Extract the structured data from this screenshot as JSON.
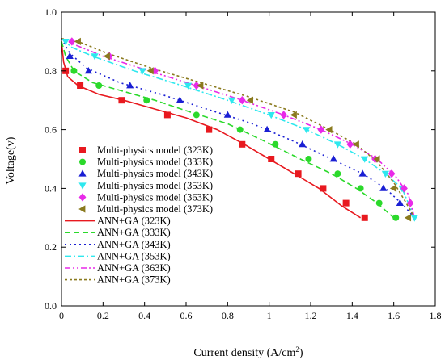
{
  "chart_data": {
    "type": "scatter",
    "xlabel": "Current density (A/cm",
    "xlabel_sup": "2",
    "xlabel_close": ")",
    "ylabel": "Voltage(v)",
    "xlim": [
      0,
      1.8
    ],
    "ylim": [
      0,
      1.0
    ],
    "xticks": [
      "0",
      "0.2",
      "0.4",
      "0.6",
      "0.8",
      "1",
      "1.2",
      "1.4",
      "1.6",
      "1.8"
    ],
    "yticks": [
      "0.0",
      "0.2",
      "0.4",
      "0.6",
      "0.8",
      "1.0"
    ],
    "grid": false,
    "legend_position": "left",
    "series": [
      {
        "name": "Multi-physics model (323K)",
        "kind": "markers",
        "marker": "square",
        "color": "#e8191f",
        "x": [
          0.02,
          0.09,
          0.29,
          0.51,
          0.71,
          0.87,
          1.01,
          1.14,
          1.26,
          1.37,
          1.46
        ],
        "y": [
          0.8,
          0.75,
          0.7,
          0.65,
          0.6,
          0.55,
          0.5,
          0.45,
          0.4,
          0.35,
          0.3
        ]
      },
      {
        "name": "Multi-physics model (333K)",
        "kind": "markers",
        "marker": "circle",
        "color": "#2bd92b",
        "x": [
          0.06,
          0.18,
          0.41,
          0.65,
          0.86,
          1.03,
          1.19,
          1.33,
          1.44,
          1.53,
          1.61
        ],
        "y": [
          0.8,
          0.75,
          0.7,
          0.65,
          0.6,
          0.55,
          0.5,
          0.45,
          0.4,
          0.35,
          0.3
        ]
      },
      {
        "name": "Multi-physics model (343K)",
        "kind": "markers",
        "marker": "triangle-up",
        "color": "#1a1fd4",
        "x": [
          0.04,
          0.13,
          0.33,
          0.57,
          0.8,
          0.99,
          1.16,
          1.31,
          1.45,
          1.55,
          1.63
        ],
        "y": [
          0.85,
          0.8,
          0.75,
          0.7,
          0.65,
          0.6,
          0.55,
          0.5,
          0.45,
          0.4,
          0.35
        ]
      },
      {
        "name": "Multi-physics model (353K)",
        "kind": "markers",
        "marker": "triangle-down",
        "color": "#2ee8ee",
        "x": [
          0.02,
          0.16,
          0.39,
          0.61,
          0.82,
          1.01,
          1.18,
          1.33,
          1.46,
          1.56,
          1.64,
          1.7
        ],
        "y": [
          0.9,
          0.85,
          0.8,
          0.75,
          0.7,
          0.65,
          0.6,
          0.55,
          0.5,
          0.45,
          0.4,
          0.3
        ]
      },
      {
        "name": "Multi-physics model (363K)",
        "kind": "markers",
        "marker": "diamond",
        "color": "#e82ae8",
        "x": [
          0.05,
          0.23,
          0.45,
          0.65,
          0.87,
          1.07,
          1.25,
          1.39,
          1.51,
          1.59,
          1.65,
          1.68
        ],
        "y": [
          0.9,
          0.85,
          0.8,
          0.75,
          0.7,
          0.65,
          0.6,
          0.55,
          0.5,
          0.45,
          0.4,
          0.35
        ]
      },
      {
        "name": "Multi-physics model (373K)",
        "kind": "markers",
        "marker": "triangle-left",
        "color": "#8a7a1e",
        "x": [
          0.08,
          0.22,
          0.43,
          0.67,
          0.91,
          1.12,
          1.29,
          1.42,
          1.52,
          1.6,
          1.67
        ],
        "y": [
          0.9,
          0.85,
          0.8,
          0.75,
          0.7,
          0.65,
          0.6,
          0.55,
          0.5,
          0.4,
          0.3
        ]
      },
      {
        "name": "ANN+GA (323K)",
        "kind": "line",
        "dash": "solid",
        "color": "#e8191f",
        "x": [
          0,
          0.01,
          0.03,
          0.08,
          0.18,
          0.3,
          0.45,
          0.6,
          0.75,
          0.88,
          1.0,
          1.12,
          1.24,
          1.35,
          1.44
        ],
        "y": [
          0.9,
          0.83,
          0.78,
          0.75,
          0.72,
          0.7,
          0.67,
          0.64,
          0.6,
          0.55,
          0.5,
          0.45,
          0.4,
          0.34,
          0.3
        ]
      },
      {
        "name": "ANN+GA (333K)",
        "kind": "line",
        "dash": "dash",
        "color": "#2bd92b",
        "x": [
          0,
          0.02,
          0.06,
          0.15,
          0.3,
          0.45,
          0.62,
          0.8,
          0.98,
          1.15,
          1.3,
          1.42,
          1.52,
          1.6
        ],
        "y": [
          0.9,
          0.85,
          0.8,
          0.76,
          0.73,
          0.7,
          0.66,
          0.62,
          0.56,
          0.5,
          0.45,
          0.4,
          0.35,
          0.3
        ]
      },
      {
        "name": "ANN+GA (343K)",
        "kind": "line",
        "dash": "dot",
        "color": "#1a1fd4",
        "x": [
          0,
          0.04,
          0.12,
          0.28,
          0.48,
          0.7,
          0.92,
          1.12,
          1.3,
          1.45,
          1.56,
          1.65,
          1.7
        ],
        "y": [
          0.91,
          0.86,
          0.81,
          0.76,
          0.72,
          0.67,
          0.62,
          0.56,
          0.5,
          0.45,
          0.4,
          0.34,
          0.3
        ]
      },
      {
        "name": "ANN+GA (353K)",
        "kind": "line",
        "dash": "dashdot",
        "color": "#2ee8ee",
        "x": [
          0,
          0.05,
          0.15,
          0.35,
          0.58,
          0.8,
          1.0,
          1.18,
          1.33,
          1.46,
          1.56,
          1.64,
          1.7
        ],
        "y": [
          0.91,
          0.88,
          0.85,
          0.8,
          0.75,
          0.7,
          0.65,
          0.6,
          0.55,
          0.5,
          0.45,
          0.4,
          0.3
        ]
      },
      {
        "name": "ANN+GA (363K)",
        "kind": "line",
        "dash": "dashdotdot",
        "color": "#e82ae8",
        "x": [
          0,
          0.06,
          0.2,
          0.42,
          0.65,
          0.87,
          1.07,
          1.25,
          1.4,
          1.52,
          1.61,
          1.67,
          1.7
        ],
        "y": [
          0.91,
          0.89,
          0.85,
          0.8,
          0.75,
          0.7,
          0.65,
          0.6,
          0.55,
          0.5,
          0.44,
          0.38,
          0.3
        ]
      },
      {
        "name": "ANN+GA (373K)",
        "kind": "line",
        "dash": "shortdash",
        "color": "#8a7a1e",
        "x": [
          0,
          0.08,
          0.22,
          0.43,
          0.67,
          0.91,
          1.12,
          1.29,
          1.42,
          1.52,
          1.6,
          1.66,
          1.7
        ],
        "y": [
          0.91,
          0.9,
          0.86,
          0.81,
          0.76,
          0.71,
          0.66,
          0.6,
          0.55,
          0.49,
          0.42,
          0.35,
          0.3
        ]
      }
    ]
  }
}
